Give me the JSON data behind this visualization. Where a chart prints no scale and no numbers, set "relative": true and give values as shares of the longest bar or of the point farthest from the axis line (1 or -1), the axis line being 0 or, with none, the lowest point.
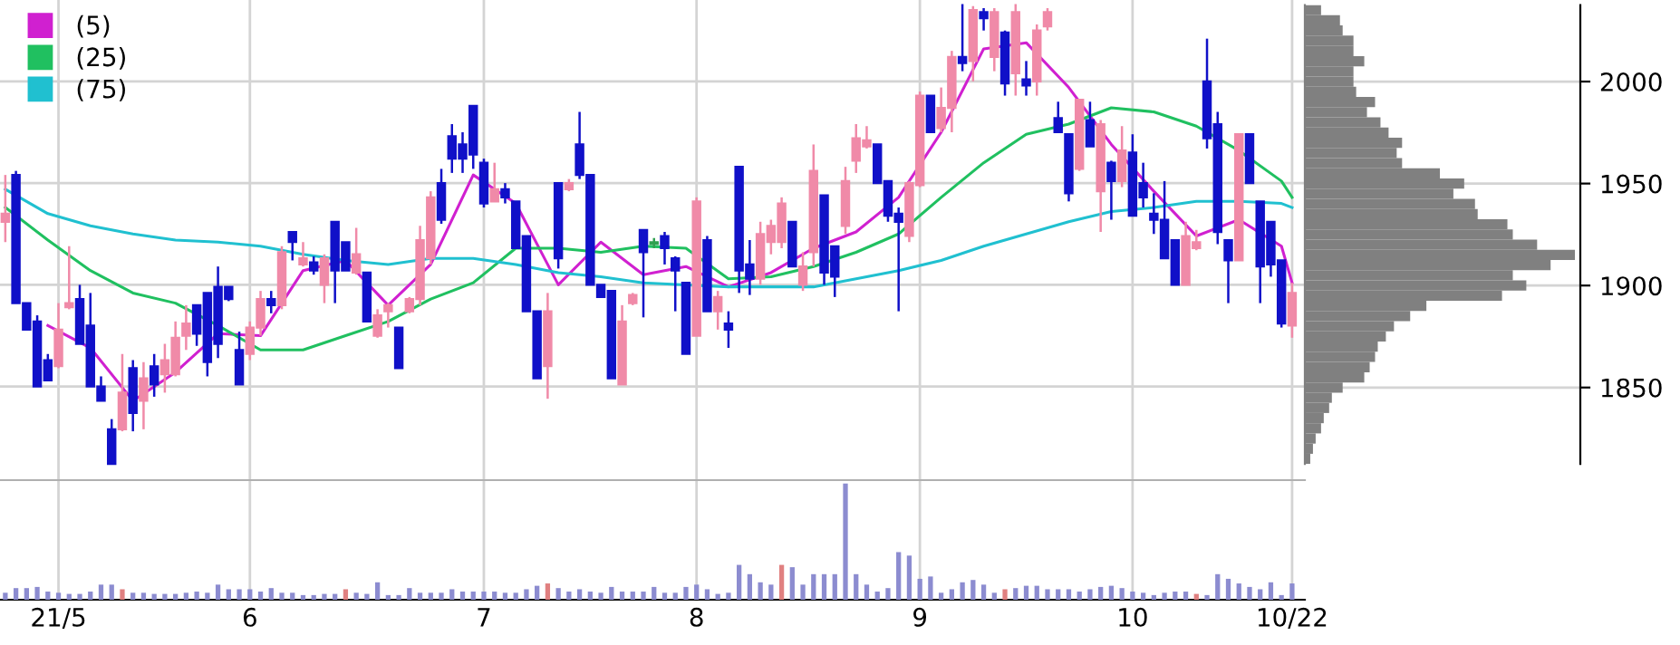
{
  "chart_data": [
    {
      "type": "candlestick",
      "grid": true,
      "tick_labels": "x",
      "legend": "top left",
      "ylim": [
        1804,
        2040
      ],
      "yticks": [
        1850,
        1900,
        1950,
        2000
      ],
      "categories": [
        null,
        null,
        null,
        null,
        null,
        "21/5",
        null,
        null,
        null,
        null,
        null,
        null,
        null,
        null,
        null,
        null,
        null,
        null,
        null,
        null,
        null,
        null,
        null,
        "6",
        null,
        null,
        null,
        null,
        null,
        null,
        null,
        null,
        null,
        null,
        null,
        null,
        null,
        null,
        null,
        null,
        null,
        null,
        null,
        null,
        null,
        "7",
        null,
        null,
        null,
        null,
        null,
        null,
        null,
        null,
        null,
        null,
        null,
        null,
        null,
        null,
        null,
        null,
        null,
        null,
        null,
        "8",
        null,
        null,
        null,
        null,
        null,
        null,
        null,
        null,
        null,
        null,
        null,
        null,
        null,
        null,
        null,
        null,
        null,
        null,
        null,
        null,
        "9",
        null,
        null,
        null,
        null,
        null,
        null,
        null,
        null,
        null,
        null,
        null,
        null,
        null,
        null,
        null,
        null,
        null,
        null,
        null,
        "10",
        null,
        null,
        null,
        null,
        null,
        null,
        null,
        null,
        null,
        null,
        null,
        null,
        null,
        null,
        "10/22"
      ],
      "ohlc": [
        [
          1931,
          1954,
          1921,
          1935
        ],
        [
          1954,
          1956,
          1891,
          1891
        ],
        [
          1891,
          1891,
          1878,
          1878
        ],
        [
          1882,
          1885,
          1850,
          1850
        ],
        [
          1863,
          1866,
          1853,
          1853
        ],
        [
          1860,
          1891,
          1859,
          1878
        ],
        [
          1889,
          1919,
          1888,
          1891
        ],
        [
          1893,
          1900,
          1871,
          1871
        ],
        [
          1880,
          1896,
          1850,
          1850
        ],
        [
          1850,
          1855,
          1843,
          1843
        ],
        [
          1829,
          1834,
          1812,
          1812
        ],
        [
          1829,
          1866,
          1828,
          1847
        ],
        [
          1859,
          1863,
          1828,
          1837
        ],
        [
          1843,
          1862,
          1829,
          1854
        ],
        [
          1860,
          1866,
          1845,
          1851
        ],
        [
          1856,
          1871,
          1847,
          1863
        ],
        [
          1856,
          1882,
          1855,
          1874
        ],
        [
          1875,
          1890,
          1868,
          1881
        ],
        [
          1890,
          1890,
          1870,
          1876
        ],
        [
          1896,
          1896,
          1855,
          1862
        ],
        [
          1899,
          1909,
          1864,
          1871
        ],
        [
          1899,
          1899,
          1892,
          1893
        ],
        [
          1868,
          1877,
          1851,
          1851
        ],
        [
          1866,
          1882,
          1863,
          1879
        ],
        [
          1879,
          1897,
          1875,
          1893
        ],
        [
          1893,
          1897,
          1886,
          1890
        ],
        [
          1890,
          1919,
          1888,
          1916
        ],
        [
          1926,
          1926,
          1912,
          1921
        ],
        [
          1910,
          1921,
          1909,
          1913
        ],
        [
          1911,
          1914,
          1905,
          1907
        ],
        [
          1900,
          1915,
          1891,
          1913
        ],
        [
          1931,
          1931,
          1891,
          1907
        ],
        [
          1921,
          1921,
          1907,
          1907
        ],
        [
          1906,
          1928,
          1905,
          1915
        ],
        [
          1906,
          1906,
          1882,
          1882
        ],
        [
          1875,
          1888,
          1874,
          1885
        ],
        [
          1887,
          1891,
          1879,
          1890
        ],
        [
          1879,
          1879,
          1859,
          1859
        ],
        [
          1887,
          1894,
          1886,
          1893
        ],
        [
          1893,
          1929,
          1890,
          1922
        ],
        [
          1913,
          1946,
          1910,
          1943
        ],
        [
          1950,
          1957,
          1930,
          1932
        ],
        [
          1973,
          1979,
          1955,
          1962
        ],
        [
          1969,
          1975,
          1955,
          1962
        ],
        [
          1988,
          1988,
          1957,
          1964
        ],
        [
          1960,
          1962,
          1938,
          1940
        ],
        [
          1941,
          1960,
          1941,
          1947
        ],
        [
          1947,
          1950,
          1940,
          1943
        ],
        [
          1941,
          1941,
          1918,
          1918
        ],
        [
          1924,
          1924,
          1887,
          1887
        ],
        [
          1887,
          1887,
          1854,
          1854
        ],
        [
          1860,
          1896,
          1844,
          1887
        ],
        [
          1950,
          1950,
          1908,
          1913
        ],
        [
          1947,
          1952,
          1946,
          1950
        ],
        [
          1969,
          1985,
          1952,
          1954
        ],
        [
          1954,
          1954,
          1900,
          1900
        ],
        [
          1900,
          1900,
          1894,
          1894
        ],
        [
          1897,
          1897,
          1854,
          1854
        ],
        [
          1851,
          1890,
          1851,
          1882
        ],
        [
          1891,
          1896,
          1890,
          1895
        ],
        [
          1927,
          1927,
          1884,
          1916
        ],
        [
          1920,
          1923,
          1918,
          1921
        ],
        [
          1924,
          1926,
          1910,
          1918
        ],
        [
          1913,
          1914,
          1887,
          1907
        ],
        [
          1901,
          1901,
          1866,
          1866
        ],
        [
          1875,
          1943,
          1875,
          1941
        ],
        [
          1922,
          1924,
          1887,
          1887
        ],
        [
          1887,
          1897,
          1878,
          1894
        ],
        [
          1881,
          1887,
          1869,
          1878
        ],
        [
          1958,
          1958,
          1896,
          1907
        ],
        [
          1910,
          1922,
          1895,
          1903
        ],
        [
          1903,
          1931,
          1900,
          1925
        ],
        [
          1921,
          1932,
          1915,
          1929
        ],
        [
          1921,
          1943,
          1918,
          1940
        ],
        [
          1931,
          1931,
          1909,
          1909
        ],
        [
          1900,
          1916,
          1897,
          1909
        ],
        [
          1916,
          1969,
          1909,
          1956
        ],
        [
          1944,
          1944,
          1900,
          1906
        ],
        [
          1919,
          1919,
          1894,
          1904
        ],
        [
          1929,
          1958,
          1925,
          1951
        ],
        [
          1961,
          1979,
          1955,
          1972
        ],
        [
          1968,
          1978,
          1967,
          1971
        ],
        [
          1969,
          1969,
          1950,
          1950
        ],
        [
          1951,
          1951,
          1931,
          1934
        ],
        [
          1935,
          1938,
          1887,
          1931
        ],
        [
          1924,
          1951,
          1921,
          1950
        ],
        [
          1949,
          1995,
          1948,
          1993
        ],
        [
          1993,
          1993,
          1975,
          1975
        ],
        [
          1977,
          1997,
          1975,
          1987
        ],
        [
          1987,
          2015,
          1975,
          2012
        ],
        [
          2012,
          2038,
          2005,
          2009
        ],
        [
          2010,
          2037,
          2000,
          2035
        ],
        [
          2034,
          2036,
          2025,
          2031
        ],
        [
          2012,
          2036,
          2005,
          2034
        ],
        [
          2024,
          2025,
          1993,
          1999
        ],
        [
          2004,
          2038,
          1993,
          2034
        ],
        [
          2001,
          2010,
          1993,
          1998
        ],
        [
          2000,
          2028,
          1993,
          2025
        ],
        [
          2027,
          2036,
          2025,
          2034
        ],
        [
          1982,
          1990,
          1975,
          1975
        ],
        [
          1974,
          1974,
          1941,
          1945
        ],
        [
          1957,
          1991,
          1956,
          1991
        ],
        [
          1981,
          1990,
          1968,
          1968
        ],
        [
          1946,
          1981,
          1926,
          1979
        ],
        [
          1960,
          1961,
          1932,
          1951
        ],
        [
          1951,
          1978,
          1948,
          1966
        ],
        [
          1965,
          1974,
          1934,
          1934
        ],
        [
          1950,
          1960,
          1938,
          1943
        ],
        [
          1935,
          1945,
          1925,
          1932
        ],
        [
          1932,
          1951,
          1913,
          1913
        ],
        [
          1922,
          1922,
          1900,
          1900
        ],
        [
          1900,
          1931,
          1900,
          1924
        ],
        [
          1918,
          1927,
          1917,
          1921
        ],
        [
          2000,
          2021,
          1967,
          1972
        ],
        [
          1979,
          1985,
          1920,
          1926
        ],
        [
          1922,
          1922,
          1891,
          1912
        ],
        [
          1912,
          1974,
          1912,
          1974
        ],
        [
          1974,
          1974,
          1950,
          1950
        ],
        [
          1941,
          1941,
          1891,
          1909
        ],
        [
          1931,
          1931,
          1904,
          1910
        ],
        [
          1912,
          1912,
          1879,
          1881
        ],
        [
          1880,
          1901,
          1874,
          1896
        ]
      ],
      "colors": [
        "#f08aa8",
        "#1010c8",
        "#1010c8",
        "#1010c8",
        "#1010c8",
        "#f08aa8",
        "#f08aa8",
        "#1010c8",
        "#1010c8",
        "#1010c8",
        "#1010c8",
        "#f08aa8",
        "#1010c8",
        "#f08aa8",
        "#1010c8",
        "#f08aa8",
        "#f08aa8",
        "#f08aa8",
        "#1010c8",
        "#1010c8",
        "#1010c8",
        "#1010c8",
        "#1010c8",
        "#f08aa8",
        "#f08aa8",
        "#1010c8",
        "#f08aa8",
        "#1010c8",
        "#f08aa8",
        "#1010c8",
        "#f08aa8",
        "#1010c8",
        "#1010c8",
        "#f08aa8",
        "#1010c8",
        "#f08aa8",
        "#f08aa8",
        "#1010c8",
        "#f08aa8",
        "#f08aa8",
        "#f08aa8",
        "#1010c8",
        "#1010c8",
        "#1010c8",
        "#1010c8",
        "#1010c8",
        "#f08aa8",
        "#1010c8",
        "#1010c8",
        "#1010c8",
        "#1010c8",
        "#f08aa8",
        "#1010c8",
        "#f08aa8",
        "#1010c8",
        "#1010c8",
        "#1010c8",
        "#1010c8",
        "#f08aa8",
        "#f08aa8",
        "#1010c8",
        "#30a050",
        "#1010c8",
        "#1010c8",
        "#1010c8",
        "#f08aa8",
        "#1010c8",
        "#f08aa8",
        "#1010c8",
        "#1010c8",
        "#1010c8",
        "#f08aa8",
        "#f08aa8",
        "#f08aa8",
        "#1010c8",
        "#f08aa8",
        "#f08aa8",
        "#1010c8",
        "#1010c8",
        "#f08aa8",
        "#f08aa8",
        "#f08aa8",
        "#1010c8",
        "#1010c8",
        "#1010c8",
        "#f08aa8",
        "#f08aa8",
        "#1010c8",
        "#f08aa8",
        "#f08aa8",
        "#1010c8",
        "#f08aa8",
        "#1010c8",
        "#f08aa8",
        "#1010c8",
        "#f08aa8",
        "#1010c8",
        "#f08aa8",
        "#f08aa8",
        "#1010c8",
        "#1010c8",
        "#f08aa8",
        "#1010c8",
        "#f08aa8",
        "#1010c8",
        "#f08aa8",
        "#1010c8",
        "#1010c8",
        "#1010c8",
        "#1010c8",
        "#1010c8",
        "#f08aa8",
        "#f08aa8",
        "#1010c8",
        "#1010c8",
        "#1010c8",
        "#f08aa8",
        "#1010c8",
        "#1010c8",
        "#1010c8",
        "#1010c8",
        "#f08aa8"
      ],
      "series": [
        {
          "type": "line",
          "name": "(5)",
          "color": "#d020d0",
          "values": [
            null,
            null,
            null,
            null,
            1880,
            null,
            null,
            null,
            1869,
            null,
            null,
            null,
            1843,
            null,
            null,
            null,
            1857,
            null,
            null,
            null,
            1876,
            null,
            null,
            null,
            1875,
            null,
            null,
            null,
            1907,
            null,
            null,
            null,
            1912,
            null,
            null,
            null,
            1890,
            null,
            null,
            null,
            1910,
            null,
            null,
            null,
            1954,
            null,
            null,
            null,
            1940,
            null,
            null,
            null,
            1900,
            null,
            null,
            null,
            1921,
            null,
            null,
            null,
            1905,
            null,
            null,
            null,
            1909,
            null,
            null,
            null,
            1899,
            null,
            null,
            null,
            1906,
            null,
            null,
            null,
            1918,
            null,
            null,
            null,
            1926,
            null,
            null,
            null,
            1943,
            null,
            null,
            null,
            1975,
            null,
            null,
            null,
            2016,
            null,
            null,
            null,
            2019,
            null,
            null,
            null,
            1997,
            null,
            null,
            null,
            1969,
            null,
            null,
            null,
            1946,
            null,
            null,
            null,
            1924,
            null,
            null,
            null,
            1932,
            null,
            null,
            null,
            1919,
            1901
          ]
        },
        {
          "type": "line",
          "name": "(25)",
          "color": "#20c060",
          "values": [
            1938,
            null,
            null,
            null,
            1922,
            null,
            null,
            null,
            1907,
            null,
            null,
            null,
            1896,
            null,
            null,
            null,
            1891,
            null,
            null,
            null,
            1880,
            null,
            null,
            null,
            1868,
            null,
            null,
            null,
            1868,
            null,
            null,
            null,
            1875,
            null,
            null,
            null,
            1882,
            null,
            null,
            null,
            1893,
            null,
            null,
            null,
            1901,
            null,
            null,
            null,
            1918,
            null,
            null,
            null,
            1918,
            null,
            null,
            null,
            1916,
            null,
            null,
            null,
            1919,
            null,
            null,
            null,
            1918,
            null,
            null,
            null,
            1903,
            null,
            null,
            null,
            1904,
            null,
            null,
            null,
            1909,
            null,
            null,
            null,
            1916,
            null,
            null,
            null,
            1925,
            null,
            null,
            null,
            1943,
            null,
            null,
            null,
            1960,
            null,
            null,
            null,
            1974,
            null,
            null,
            null,
            1979,
            null,
            null,
            null,
            1987,
            null,
            null,
            null,
            1985,
            null,
            null,
            null,
            1978,
            null,
            null,
            null,
            1966,
            null,
            null,
            null,
            1951,
            1943
          ]
        },
        {
          "type": "line",
          "name": "(75)",
          "color": "#20c0d0",
          "values": [
            1947,
            null,
            null,
            null,
            1935,
            null,
            null,
            null,
            1929,
            null,
            null,
            null,
            1925,
            null,
            null,
            null,
            1922,
            null,
            null,
            null,
            1921,
            null,
            null,
            null,
            1919,
            null,
            null,
            null,
            1915,
            null,
            null,
            null,
            1912,
            null,
            null,
            null,
            1910,
            null,
            null,
            null,
            1913,
            null,
            null,
            null,
            1913,
            null,
            null,
            null,
            1910,
            null,
            null,
            null,
            1906,
            null,
            null,
            null,
            1904,
            null,
            null,
            null,
            1901,
            null,
            null,
            null,
            1900,
            null,
            null,
            null,
            1899,
            null,
            null,
            null,
            1899,
            null,
            null,
            null,
            1899,
            null,
            null,
            null,
            1903,
            null,
            null,
            null,
            1907,
            null,
            null,
            null,
            1912,
            null,
            null,
            null,
            1919,
            null,
            null,
            null,
            1925,
            null,
            null,
            null,
            1931,
            null,
            null,
            null,
            1936,
            null,
            null,
            null,
            1938,
            null,
            null,
            null,
            1941,
            null,
            null,
            null,
            1941,
            null,
            null,
            null,
            1940,
            1938
          ]
        }
      ]
    },
    {
      "type": "bar",
      "relative": true,
      "tick_labels": false,
      "categories": [
        null,
        null,
        null,
        null,
        null,
        null,
        null,
        null,
        null,
        null,
        null,
        null,
        null,
        null,
        null,
        null,
        null,
        null,
        null,
        null,
        null,
        null,
        null,
        null,
        null,
        null,
        null,
        null,
        null,
        null,
        null,
        null,
        null,
        null,
        null,
        null,
        null,
        null,
        null,
        null,
        null,
        null,
        null,
        null,
        null,
        null,
        null,
        null,
        null,
        null,
        null,
        null,
        null,
        null,
        null,
        null,
        null,
        null,
        null,
        null,
        null,
        null,
        null,
        null,
        null,
        null,
        null,
        null,
        null,
        null,
        null,
        null,
        null,
        null,
        null,
        null,
        null,
        null,
        null,
        null,
        null,
        null,
        null,
        null,
        null,
        null,
        null,
        null,
        null,
        null,
        null,
        null,
        null,
        null,
        null,
        null,
        null,
        null,
        null,
        null,
        null,
        null,
        null,
        null,
        null,
        null,
        null,
        null,
        null,
        null,
        null,
        null,
        null,
        null,
        null,
        null,
        null,
        null,
        null,
        null,
        null,
        null
      ],
      "values": [
        0.06,
        0.1,
        0.1,
        0.11,
        0.07,
        0.06,
        0.05,
        0.05,
        0.07,
        0.13,
        0.13,
        0.09,
        0.06,
        0.06,
        0.05,
        0.05,
        0.05,
        0.06,
        0.07,
        0.06,
        0.13,
        0.09,
        0.09,
        0.09,
        0.07,
        0.1,
        0.06,
        0.06,
        0.04,
        0.04,
        0.05,
        0.05,
        0.09,
        0.06,
        0.05,
        0.15,
        0.04,
        0.04,
        0.1,
        0.06,
        0.06,
        0.06,
        0.09,
        0.07,
        0.07,
        0.07,
        0.07,
        0.06,
        0.06,
        0.09,
        0.12,
        0.14,
        0.1,
        0.07,
        0.09,
        0.07,
        0.06,
        0.11,
        0.07,
        0.07,
        0.07,
        0.11,
        0.06,
        0.06,
        0.11,
        0.13,
        0.09,
        0.05,
        0.06,
        0.3,
        0.22,
        0.15,
        0.13,
        0.3,
        0.28,
        0.13,
        0.22,
        0.22,
        0.22,
        1,
        0.22,
        0.13,
        0.07,
        0.1,
        0.41,
        0.38,
        0.18,
        0.2,
        0.06,
        0.09,
        0.15,
        0.17,
        0.13,
        0.06,
        0.09,
        0.1,
        0.12,
        0.12,
        0.09,
        0.09,
        0.09,
        0.07,
        0.09,
        0.11,
        0.12,
        0.1,
        0.07,
        0.06,
        0.04,
        0.06,
        0.07,
        0.07,
        0.05,
        0.04,
        0.22,
        0.18,
        0.14,
        0.11,
        0.09,
        0.15,
        0.04,
        0.14
      ],
      "colors": [
        "#8c8cd0",
        "#8c8cd0",
        "#8c8cd0",
        "#8c8cd0",
        "#8c8cd0",
        "#8c8cd0",
        "#8c8cd0",
        "#8c8cd0",
        "#8c8cd0",
        "#8c8cd0",
        "#8c8cd0",
        "#e08080",
        "#8c8cd0",
        "#8c8cd0",
        "#8c8cd0",
        "#8c8cd0",
        "#8c8cd0",
        "#8c8cd0",
        "#8c8cd0",
        "#8c8cd0",
        "#8c8cd0",
        "#8c8cd0",
        "#8c8cd0",
        "#8c8cd0",
        "#8c8cd0",
        "#8c8cd0",
        "#8c8cd0",
        "#8c8cd0",
        "#8c8cd0",
        "#8c8cd0",
        "#8c8cd0",
        "#8c8cd0",
        "#e08080",
        "#8c8cd0",
        "#8c8cd0",
        "#8c8cd0",
        "#8c8cd0",
        "#8c8cd0",
        "#8c8cd0",
        "#8c8cd0",
        "#8c8cd0",
        "#8c8cd0",
        "#8c8cd0",
        "#8c8cd0",
        "#8c8cd0",
        "#8c8cd0",
        "#8c8cd0",
        "#8c8cd0",
        "#8c8cd0",
        "#8c8cd0",
        "#8c8cd0",
        "#e08080",
        "#8c8cd0",
        "#8c8cd0",
        "#8c8cd0",
        "#8c8cd0",
        "#8c8cd0",
        "#8c8cd0",
        "#8c8cd0",
        "#8c8cd0",
        "#8c8cd0",
        "#8c8cd0",
        "#8c8cd0",
        "#8c8cd0",
        "#8c8cd0",
        "#8c8cd0",
        "#8c8cd0",
        "#8c8cd0",
        "#8c8cd0",
        "#8c8cd0",
        "#8c8cd0",
        "#8c8cd0",
        "#8c8cd0",
        "#e08080",
        "#8c8cd0",
        "#8c8cd0",
        "#8c8cd0",
        "#8c8cd0",
        "#8c8cd0",
        "#8c8cd0",
        "#8c8cd0",
        "#8c8cd0",
        "#8c8cd0",
        "#8c8cd0",
        "#8c8cd0",
        "#8c8cd0",
        "#8c8cd0",
        "#8c8cd0",
        "#8c8cd0",
        "#8c8cd0",
        "#8c8cd0",
        "#8c8cd0",
        "#8c8cd0",
        "#8c8cd0",
        "#e08080",
        "#8c8cd0",
        "#8c8cd0",
        "#8c8cd0",
        "#8c8cd0",
        "#8c8cd0",
        "#8c8cd0",
        "#8c8cd0",
        "#8c8cd0",
        "#8c8cd0",
        "#8c8cd0",
        "#8c8cd0",
        "#8c8cd0",
        "#8c8cd0",
        "#8c8cd0",
        "#8c8cd0",
        "#8c8cd0",
        "#8c8cd0",
        "#e08080",
        "#8c8cd0",
        "#8c8cd0",
        "#8c8cd0",
        "#8c8cd0",
        "#8c8cd0",
        "#8c8cd0",
        "#8c8cd0",
        "#8c8cd0",
        "#8c8cd0"
      ]
    },
    {
      "type": "bar",
      "orientation": "horizontal",
      "relative": true,
      "grid": "y",
      "color": "#808080",
      "categories": [
        null,
        null,
        null,
        null,
        null,
        null,
        null,
        "2000",
        null,
        null,
        null,
        null,
        null,
        null,
        null,
        null,
        null,
        "1950",
        null,
        null,
        null,
        null,
        null,
        null,
        null,
        null,
        null,
        "1900",
        null,
        null,
        null,
        null,
        null,
        null,
        null,
        null,
        null,
        "1850",
        null,
        null,
        null,
        null,
        null,
        null,
        null
      ],
      "values": [
        0.06,
        0.13,
        0.14,
        0.18,
        0.18,
        0.22,
        0.18,
        0.18,
        0.19,
        0.26,
        0.23,
        0.28,
        0.31,
        0.36,
        0.34,
        0.36,
        0.5,
        0.59,
        0.55,
        0.63,
        0.64,
        0.75,
        0.77,
        0.86,
        1,
        0.91,
        0.77,
        0.82,
        0.73,
        0.45,
        0.39,
        0.33,
        0.3,
        0.27,
        0.26,
        0.24,
        0.22,
        0.14,
        0.1,
        0.09,
        0.07,
        0.06,
        0.04,
        0.03,
        0.02
      ]
    }
  ]
}
